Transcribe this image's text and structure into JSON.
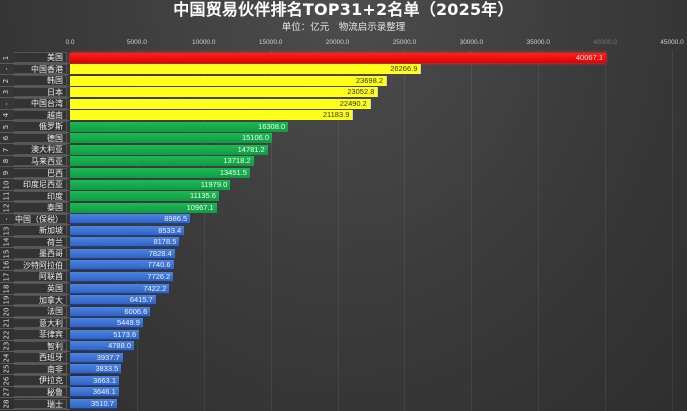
{
  "title": "中国贸易伙伴排名TOP31+2名单（2025年）",
  "subtitle": "单位：亿元　物流启示录整理",
  "colors": {
    "red": "#ff1a1a",
    "yellow": "#ffff1a",
    "green": "#16a84a",
    "blue": "#3d73d6",
    "background": "#3a3a3a"
  },
  "chart_data": {
    "type": "bar",
    "orientation": "horizontal",
    "title": "中国贸易伙伴排名TOP31+2名单（2025年）",
    "subtitle": "单位：亿元　物流启示录整理",
    "xlabel": "",
    "ylabel": "",
    "xlim": [
      0,
      45000
    ],
    "x_ticks": [
      "0.0",
      "5000.0",
      "10000.0",
      "15000.0",
      "20000.0",
      "25000.0",
      "30000.0",
      "35000.0",
      "40000.0",
      "45000.0"
    ],
    "grid": true,
    "rows": [
      {
        "rank": "1",
        "name": "美国",
        "value": 40067.1,
        "color": "red"
      },
      {
        "rank": "-",
        "name": "中国香港",
        "value": 26266.9,
        "color": "yellow"
      },
      {
        "rank": "2",
        "name": "韩国",
        "value": 23698.2,
        "color": "yellow"
      },
      {
        "rank": "3",
        "name": "日本",
        "value": 23052.8,
        "color": "yellow"
      },
      {
        "rank": "-",
        "name": "中国台湾",
        "value": 22490.2,
        "color": "yellow"
      },
      {
        "rank": "4",
        "name": "越南",
        "value": 21183.9,
        "color": "yellow"
      },
      {
        "rank": "5",
        "name": "俄罗斯",
        "value": 16308.0,
        "color": "green"
      },
      {
        "rank": "6",
        "name": "德国",
        "value": 15106.0,
        "color": "green"
      },
      {
        "rank": "7",
        "name": "澳大利亚",
        "value": 14781.2,
        "color": "green"
      },
      {
        "rank": "8",
        "name": "马来西亚",
        "value": 13718.2,
        "color": "green"
      },
      {
        "rank": "9",
        "name": "巴西",
        "value": 13451.5,
        "color": "green"
      },
      {
        "rank": "10",
        "name": "印度尼西亚",
        "value": 11979.0,
        "color": "green"
      },
      {
        "rank": "11",
        "name": "印度",
        "value": 11135.6,
        "color": "green"
      },
      {
        "rank": "12",
        "name": "泰国",
        "value": 10967.1,
        "color": "green"
      },
      {
        "rank": "-",
        "name": "中国（保税）",
        "value": 8986.5,
        "color": "blue"
      },
      {
        "rank": "13",
        "name": "新加坡",
        "value": 8533.4,
        "color": "blue"
      },
      {
        "rank": "14",
        "name": "荷兰",
        "value": 8178.5,
        "color": "blue"
      },
      {
        "rank": "15",
        "name": "墨西哥",
        "value": 7828.4,
        "color": "blue"
      },
      {
        "rank": "16",
        "name": "沙特阿拉伯",
        "value": 7740.6,
        "color": "blue"
      },
      {
        "rank": "17",
        "name": "阿联酋",
        "value": 7726.2,
        "color": "blue"
      },
      {
        "rank": "18",
        "name": "英国",
        "value": 7422.2,
        "color": "blue"
      },
      {
        "rank": "19",
        "name": "加拿大",
        "value": 6415.7,
        "color": "blue"
      },
      {
        "rank": "20",
        "name": "法国",
        "value": 6006.6,
        "color": "blue"
      },
      {
        "rank": "21",
        "name": "意大利",
        "value": 5449.9,
        "color": "blue"
      },
      {
        "rank": "22",
        "name": "菲律宾",
        "value": 5173.6,
        "color": "blue"
      },
      {
        "rank": "23",
        "name": "智利",
        "value": 4788.0,
        "color": "blue"
      },
      {
        "rank": "24",
        "name": "西班牙",
        "value": 3937.7,
        "color": "blue"
      },
      {
        "rank": "25",
        "name": "南非",
        "value": 3833.5,
        "color": "blue"
      },
      {
        "rank": "26",
        "name": "伊拉克",
        "value": 3663.1,
        "color": "blue"
      },
      {
        "rank": "27",
        "name": "秘鲁",
        "value": 3646.1,
        "color": "blue"
      },
      {
        "rank": "28",
        "name": "瑞士",
        "value": 3510.7,
        "color": "blue"
      }
    ],
    "categories": [
      "美国",
      "中国香港",
      "韩国",
      "日本",
      "中国台湾",
      "越南",
      "俄罗斯",
      "德国",
      "澳大利亚",
      "马来西亚",
      "巴西",
      "印度尼西亚",
      "印度",
      "泰国",
      "中国（保税）",
      "新加坡",
      "荷兰",
      "墨西哥",
      "沙特阿拉伯",
      "阿联酋",
      "英国",
      "加拿大",
      "法国",
      "意大利",
      "菲律宾",
      "智利",
      "西班牙",
      "南非",
      "伊拉克",
      "秘鲁",
      "瑞士"
    ],
    "values": [
      40067.1,
      26266.9,
      23698.2,
      23052.8,
      22490.2,
      21183.9,
      16308.0,
      15106.0,
      14781.2,
      13718.2,
      13451.5,
      11979.0,
      11135.6,
      10967.1,
      8986.5,
      8533.4,
      8178.5,
      7828.4,
      7740.6,
      7726.2,
      7422.2,
      6415.7,
      6006.6,
      5449.9,
      5173.6,
      4788.0,
      3937.7,
      3833.5,
      3663.1,
      3646.1,
      3510.7
    ]
  }
}
